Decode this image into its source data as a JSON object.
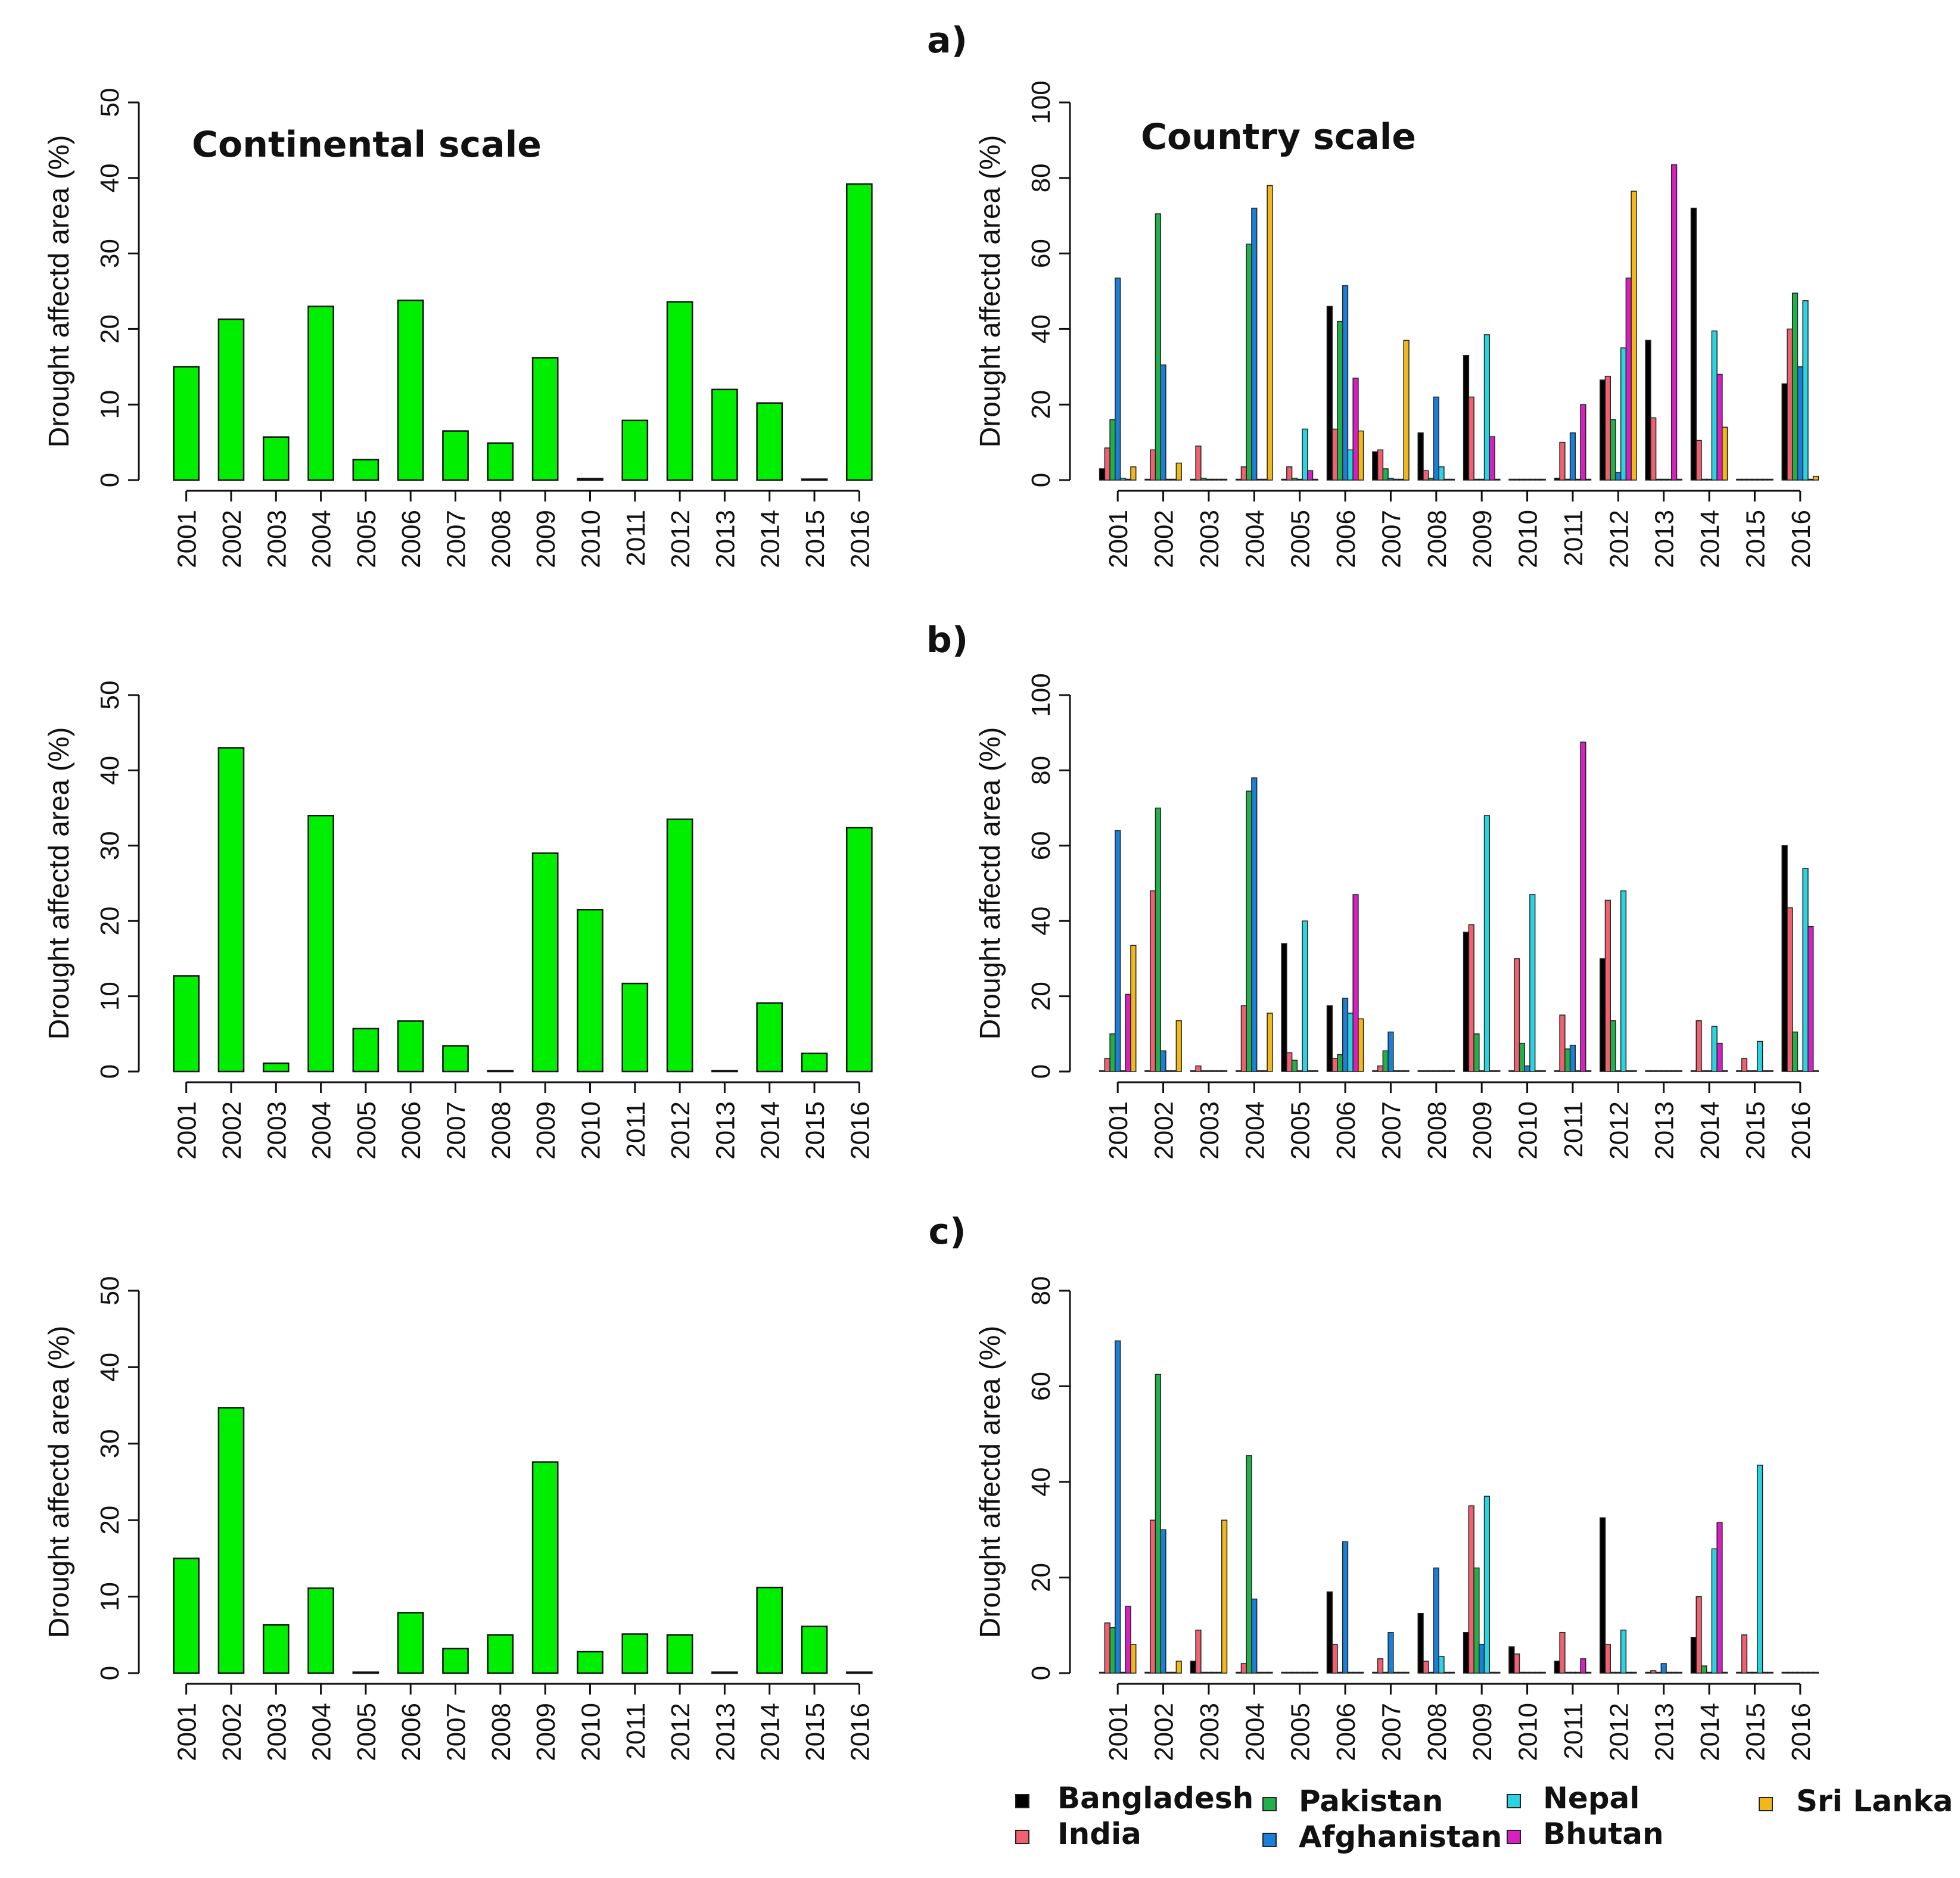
{
  "panel_labels": [
    "a)",
    "b)",
    "c)"
  ],
  "scale_labels": {
    "continental": "Continental scale",
    "country": "Country scale"
  },
  "ylabel": "Drought affectd area (%)",
  "legend": {
    "entries": [
      {
        "name": "Bangladesh",
        "color": "#000000"
      },
      {
        "name": "India",
        "color": "#f06070"
      },
      {
        "name": "Pakistan",
        "color": "#22b04a"
      },
      {
        "name": "Afghanistan",
        "color": "#1a7fd6"
      },
      {
        "name": "Nepal",
        "color": "#2ad4e0"
      },
      {
        "name": "Bhutan",
        "color": "#d81fc2"
      },
      {
        "name": "Sri Lanka",
        "color": "#f2b81a"
      }
    ]
  },
  "chart_data": [
    {
      "id": "a-continental",
      "type": "bar",
      "panel": "a)",
      "title": "Continental scale",
      "xlabel": "",
      "ylabel": "Drought affectd area (%)",
      "ylim": [
        0,
        50
      ],
      "yticks": [
        0,
        10,
        20,
        30,
        40,
        50
      ],
      "bar_color": "#00ee00",
      "categories": [
        "2001",
        "2002",
        "2003",
        "2004",
        "2005",
        "2006",
        "2007",
        "2008",
        "2009",
        "2010",
        "2011",
        "2012",
        "2013",
        "2014",
        "2015",
        "2016"
      ],
      "values": [
        15,
        21.3,
        5.7,
        23,
        2.7,
        23.8,
        6.5,
        4.9,
        16.2,
        0.2,
        7.9,
        23.6,
        12,
        10.2,
        0,
        39.2
      ]
    },
    {
      "id": "a-country",
      "type": "bar",
      "panel": "a)",
      "title": "Country scale",
      "xlabel": "",
      "ylabel": "Drought affectd area (%)",
      "ylim": [
        0,
        100
      ],
      "yticks": [
        0,
        20,
        40,
        60,
        80,
        100
      ],
      "categories": [
        "2001",
        "2002",
        "2003",
        "2004",
        "2005",
        "2006",
        "2007",
        "2008",
        "2009",
        "2010",
        "2011",
        "2012",
        "2013",
        "2014",
        "2015",
        "2016"
      ],
      "series": [
        {
          "name": "Bangladesh",
          "values": [
            3,
            0,
            0,
            0,
            0,
            46,
            7.5,
            12.5,
            33,
            0,
            0.5,
            26.5,
            37,
            72,
            0,
            25.5
          ]
        },
        {
          "name": "India",
          "values": [
            8.5,
            8,
            9,
            3.5,
            3.5,
            13.5,
            8,
            2.5,
            22,
            0.2,
            10,
            27.5,
            16.5,
            10.5,
            0,
            40
          ]
        },
        {
          "name": "Pakistan",
          "values": [
            16,
            70.5,
            0.5,
            62.5,
            0.5,
            42,
            3,
            0.5,
            0,
            0,
            0,
            16,
            0,
            0,
            0,
            49.5
          ]
        },
        {
          "name": "Afghanistan",
          "values": [
            53.5,
            30.5,
            0,
            72,
            0,
            51.5,
            0.5,
            22,
            0,
            0,
            12.5,
            2,
            0,
            0,
            0,
            30
          ]
        },
        {
          "name": "Nepal",
          "values": [
            0.5,
            0,
            0,
            0,
            13.5,
            8,
            0,
            3.5,
            38.5,
            0,
            0,
            35,
            0,
            39.5,
            0,
            47.5
          ]
        },
        {
          "name": "Bhutan",
          "values": [
            0,
            0,
            0,
            0,
            2.5,
            27,
            0,
            0,
            11.5,
            0,
            20,
            53.5,
            83.5,
            28,
            0,
            0
          ]
        },
        {
          "name": "Sri Lanka",
          "values": [
            3.5,
            4.5,
            0,
            78,
            0,
            13,
            37,
            0,
            0,
            0,
            0,
            76.5,
            0,
            14,
            0,
            1
          ]
        }
      ]
    },
    {
      "id": "b-continental",
      "type": "bar",
      "panel": "b)",
      "xlabel": "",
      "ylabel": "Drought affectd area (%)",
      "ylim": [
        0,
        50
      ],
      "yticks": [
        0,
        10,
        20,
        30,
        40,
        50
      ],
      "bar_color": "#00ee00",
      "categories": [
        "2001",
        "2002",
        "2003",
        "2004",
        "2005",
        "2006",
        "2007",
        "2008",
        "2009",
        "2010",
        "2011",
        "2012",
        "2013",
        "2014",
        "2015",
        "2016"
      ],
      "values": [
        12.7,
        43,
        1.1,
        34,
        5.7,
        6.7,
        3.4,
        0.1,
        29,
        21.5,
        11.7,
        33.5,
        0.1,
        9.1,
        2.4,
        32.4
      ]
    },
    {
      "id": "b-country",
      "type": "bar",
      "panel": "b)",
      "xlabel": "",
      "ylabel": "Drought affectd area (%)",
      "ylim": [
        0,
        100
      ],
      "yticks": [
        0,
        20,
        40,
        60,
        80,
        100
      ],
      "categories": [
        "2001",
        "2002",
        "2003",
        "2004",
        "2005",
        "2006",
        "2007",
        "2008",
        "2009",
        "2010",
        "2011",
        "2012",
        "2013",
        "2014",
        "2015",
        "2016"
      ],
      "series": [
        {
          "name": "Bangladesh",
          "values": [
            0,
            0,
            0,
            0,
            34,
            17.5,
            0,
            0,
            37,
            0,
            0,
            30,
            0,
            0,
            0,
            60
          ]
        },
        {
          "name": "India",
          "values": [
            3.5,
            48,
            1.5,
            17.5,
            5,
            3.5,
            1.5,
            0,
            39,
            30,
            15,
            45.5,
            0,
            13.5,
            3.5,
            43.5
          ]
        },
        {
          "name": "Pakistan",
          "values": [
            10,
            70,
            0,
            74.5,
            3,
            4.5,
            5.5,
            0,
            10,
            7.5,
            6,
            13.5,
            0,
            0,
            0,
            10.5
          ]
        },
        {
          "name": "Afghanistan",
          "values": [
            64,
            5.5,
            0,
            78,
            0,
            19.5,
            10.5,
            0,
            0,
            1.5,
            7,
            0,
            0,
            0,
            0,
            0
          ]
        },
        {
          "name": "Nepal",
          "values": [
            0,
            0,
            0,
            0,
            40,
            15.5,
            0,
            0,
            68,
            47,
            0,
            48,
            0,
            12,
            8,
            54
          ]
        },
        {
          "name": "Bhutan",
          "values": [
            20.5,
            0,
            0,
            0,
            0,
            47,
            0,
            0,
            0,
            0,
            87.5,
            0,
            0,
            7.5,
            0,
            38.5
          ]
        },
        {
          "name": "Sri Lanka",
          "values": [
            33.5,
            13.5,
            0,
            15.5,
            0,
            14,
            0,
            0,
            0,
            0,
            0,
            0,
            0,
            0,
            0,
            0
          ]
        }
      ]
    },
    {
      "id": "c-continental",
      "type": "bar",
      "panel": "c)",
      "xlabel": "",
      "ylabel": "Drought affectd area (%)",
      "ylim": [
        0,
        50
      ],
      "yticks": [
        0,
        10,
        20,
        30,
        40,
        50
      ],
      "bar_color": "#00ee00",
      "categories": [
        "2001",
        "2002",
        "2003",
        "2004",
        "2005",
        "2006",
        "2007",
        "2008",
        "2009",
        "2010",
        "2011",
        "2012",
        "2013",
        "2014",
        "2015",
        "2016"
      ],
      "values": [
        15,
        34.7,
        6.3,
        11.1,
        0.1,
        7.9,
        3.2,
        5,
        27.6,
        2.8,
        5.1,
        5,
        0.1,
        11.2,
        6.1,
        0.1
      ]
    },
    {
      "id": "c-country",
      "type": "bar",
      "panel": "c)",
      "xlabel": "",
      "ylabel": "Drought affectd area (%)",
      "ylim": [
        0,
        80
      ],
      "yticks": [
        0,
        20,
        40,
        60,
        80
      ],
      "categories": [
        "2001",
        "2002",
        "2003",
        "2004",
        "2005",
        "2006",
        "2007",
        "2008",
        "2009",
        "2010",
        "2011",
        "2012",
        "2013",
        "2014",
        "2015",
        "2016"
      ],
      "series": [
        {
          "name": "Bangladesh",
          "values": [
            0,
            0,
            2.5,
            0,
            0,
            17,
            0,
            12.5,
            8.5,
            5.5,
            2.5,
            32.5,
            0,
            7.5,
            0,
            0
          ]
        },
        {
          "name": "India",
          "values": [
            10.5,
            32,
            9,
            2,
            0,
            6,
            3,
            2.5,
            35,
            4,
            8.5,
            6,
            0.5,
            16,
            8,
            0
          ]
        },
        {
          "name": "Pakistan",
          "values": [
            9.5,
            62.5,
            0,
            45.5,
            0,
            0,
            0,
            0,
            22,
            0,
            0,
            0,
            0,
            1.5,
            0,
            0
          ]
        },
        {
          "name": "Afghanistan",
          "values": [
            69.5,
            30,
            0,
            15.5,
            0,
            27.5,
            8.5,
            22,
            6,
            0,
            0,
            0,
            2,
            0,
            0,
            0
          ]
        },
        {
          "name": "Nepal",
          "values": [
            0,
            0,
            0,
            0,
            0,
            0,
            0,
            3.5,
            37,
            0,
            0,
            9,
            0,
            26,
            43.5,
            0
          ]
        },
        {
          "name": "Bhutan",
          "values": [
            14,
            0,
            0,
            0,
            0,
            0,
            0,
            0,
            0,
            0,
            3,
            0,
            0,
            31.5,
            0,
            0
          ]
        },
        {
          "name": "Sri Lanka",
          "values": [
            6,
            2.5,
            32,
            0,
            0,
            0,
            0,
            0,
            0,
            0,
            0,
            0,
            0,
            0,
            0,
            0
          ]
        }
      ]
    }
  ]
}
